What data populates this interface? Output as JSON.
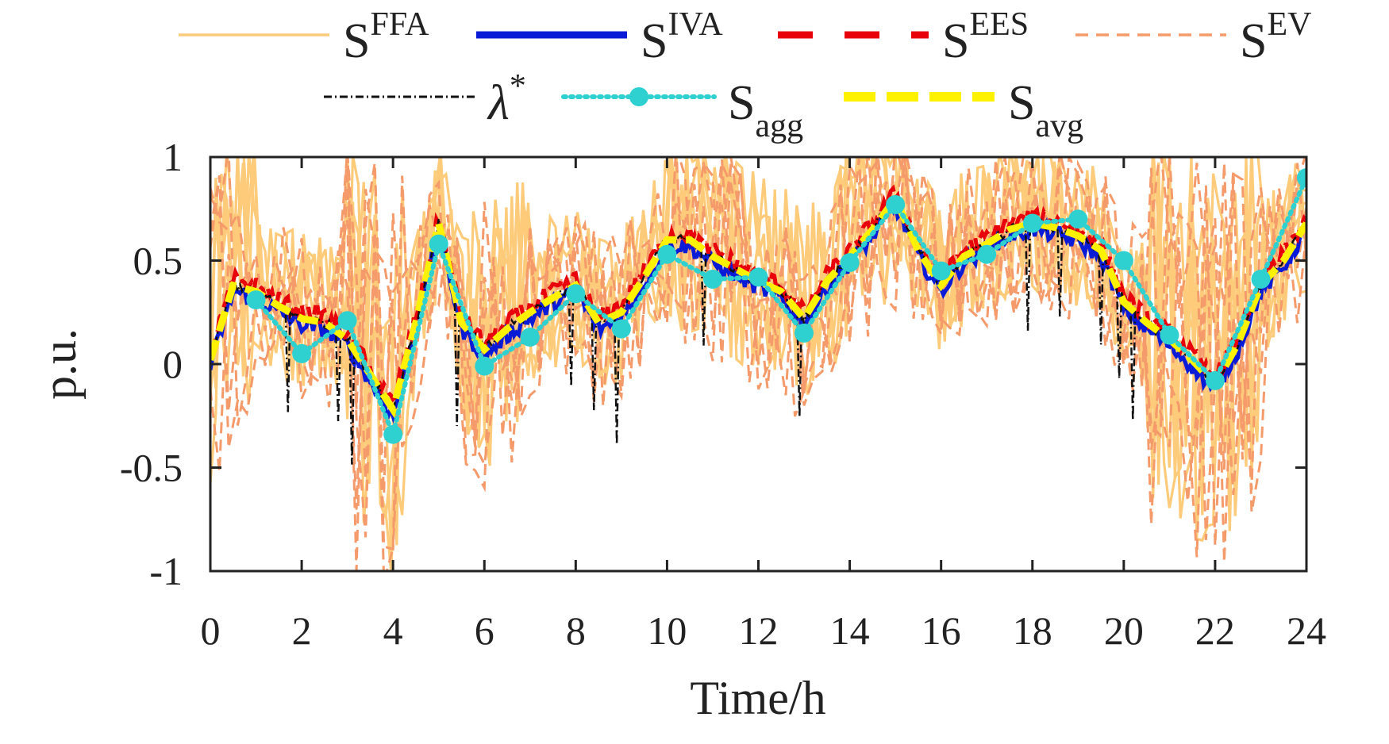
{
  "chart_data": {
    "type": "line",
    "title": "",
    "xlabel": "Time/h",
    "ylabel": "p.u.",
    "xlim": [
      0,
      24
    ],
    "ylim": [
      -1,
      1
    ],
    "xticks": [
      0,
      2,
      4,
      6,
      8,
      10,
      12,
      14,
      16,
      18,
      20,
      22,
      24
    ],
    "yticks": [
      1,
      0.5,
      0,
      -0.5,
      -1
    ],
    "xtick_labels": [
      "0",
      "2",
      "4",
      "6",
      "8",
      "10",
      "12",
      "14",
      "16",
      "18",
      "20",
      "22",
      "24"
    ],
    "ytick_labels": [
      "1",
      "0.5",
      "0",
      "-0.5",
      "-1"
    ],
    "grid": false,
    "legend_position": "top",
    "legend": [
      {
        "key": "ffa",
        "base": "S",
        "sup": "FFA",
        "sub": "",
        "color": "#FDCB7A",
        "style": "solid"
      },
      {
        "key": "iva",
        "base": "S",
        "sup": "IVA",
        "sub": "",
        "color": "#0A1BD8",
        "style": "solid"
      },
      {
        "key": "ees",
        "base": "S",
        "sup": "EES",
        "sub": "",
        "color": "#E8000B",
        "style": "dashed"
      },
      {
        "key": "ev",
        "base": "S",
        "sup": "EV",
        "sub": "",
        "color": "#F59A6A",
        "style": "dashed"
      },
      {
        "key": "lambda",
        "base": "λ",
        "sup": "*",
        "sub": "",
        "color": "#111111",
        "style": "dashdot"
      },
      {
        "key": "agg",
        "base": "S",
        "sup": "",
        "sub": "agg",
        "color": "#2ED0D0",
        "style": "dotted-marker"
      },
      {
        "key": "avg",
        "base": "S",
        "sup": "",
        "sub": "avg",
        "color": "#FFF200",
        "style": "dashed"
      }
    ],
    "x": [
      0,
      0.5,
      1,
      1.5,
      2,
      2.5,
      3,
      3.5,
      4,
      4.5,
      5,
      5.5,
      6,
      6.5,
      7,
      7.5,
      8,
      8.5,
      9,
      9.5,
      10,
      10.5,
      11,
      11.5,
      12,
      12.5,
      13,
      13.5,
      14,
      14.5,
      15,
      15.5,
      16,
      16.5,
      17,
      17.5,
      18,
      18.5,
      19,
      19.5,
      20,
      20.5,
      21,
      21.5,
      22,
      22.5,
      23,
      23.5,
      24
    ],
    "series": [
      {
        "key": "avg",
        "values": [
          0.02,
          0.38,
          0.35,
          0.28,
          0.22,
          0.2,
          0.12,
          -0.05,
          -0.22,
          0.2,
          0.68,
          0.2,
          0.07,
          0.17,
          0.25,
          0.32,
          0.38,
          0.2,
          0.25,
          0.42,
          0.6,
          0.6,
          0.52,
          0.46,
          0.4,
          0.35,
          0.22,
          0.4,
          0.52,
          0.65,
          0.8,
          0.55,
          0.38,
          0.52,
          0.58,
          0.65,
          0.68,
          0.66,
          0.62,
          0.55,
          0.3,
          0.2,
          0.12,
          0.02,
          -0.1,
          0.1,
          0.38,
          0.5,
          0.68
        ]
      },
      {
        "key": "agg",
        "values": [
          null,
          null,
          0.31,
          null,
          0.05,
          null,
          0.21,
          null,
          -0.34,
          null,
          0.58,
          null,
          -0.01,
          null,
          0.13,
          null,
          0.34,
          null,
          0.17,
          null,
          0.53,
          null,
          0.41,
          null,
          0.42,
          null,
          0.15,
          null,
          0.49,
          null,
          0.77,
          null,
          0.45,
          null,
          0.53,
          null,
          0.68,
          null,
          0.7,
          null,
          0.5,
          null,
          0.14,
          null,
          -0.08,
          null,
          0.41,
          null,
          0.9
        ]
      }
    ]
  }
}
